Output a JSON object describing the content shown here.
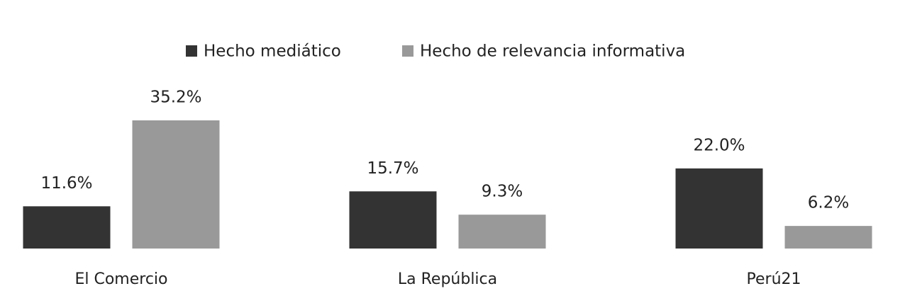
{
  "chart_data": {
    "type": "bar",
    "categories": [
      "El Comercio",
      "La República",
      "Perú21"
    ],
    "series": [
      {
        "name": "Hecho mediático",
        "color": "#333333",
        "values": [
          11.6,
          15.7,
          22.0
        ],
        "value_labels": [
          "11.6%",
          "15.7%",
          "22.0%"
        ]
      },
      {
        "name": "Hecho de relevancia informativa",
        "color": "#999999",
        "values": [
          35.2,
          9.3,
          6.2
        ],
        "value_labels": [
          "35.2%",
          "9.3%",
          "6.2%"
        ]
      }
    ],
    "legend": "top"
  }
}
